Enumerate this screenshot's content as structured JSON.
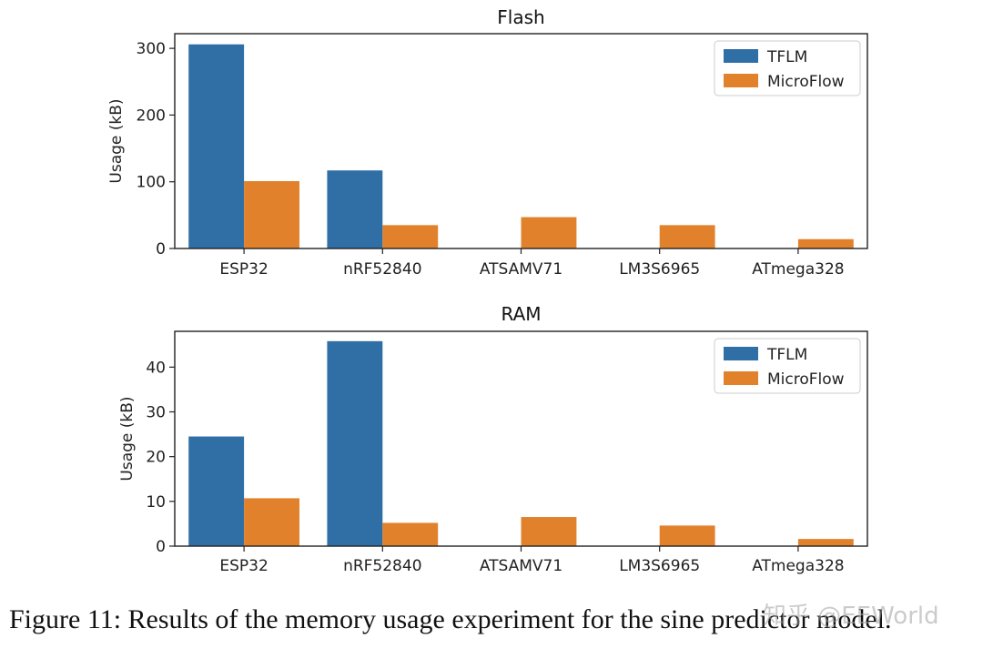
{
  "colors": {
    "tflm": "#2f6fa6",
    "microflow": "#e2812c",
    "axis": "#222222"
  },
  "chart_data": [
    {
      "type": "bar",
      "title": "Flash",
      "xlabel": "",
      "ylabel": "Usage (kB)",
      "categories": [
        "ESP32",
        "nRF52840",
        "ATSAMV71",
        "LM3S6965",
        "ATmega328"
      ],
      "series": [
        {
          "name": "TFLM",
          "values": [
            306,
            117,
            0,
            0,
            0
          ]
        },
        {
          "name": "MicroFlow",
          "values": [
            101,
            35,
            47,
            35,
            14
          ]
        }
      ],
      "ylim": [
        0,
        322
      ],
      "yticks": [
        0,
        100,
        200,
        300
      ],
      "legend": "top-right"
    },
    {
      "type": "bar",
      "title": "RAM",
      "xlabel": "",
      "ylabel": "Usage (kB)",
      "categories": [
        "ESP32",
        "nRF52840",
        "ATSAMV71",
        "LM3S6965",
        "ATmega328"
      ],
      "series": [
        {
          "name": "TFLM",
          "values": [
            24.5,
            45.8,
            0,
            0,
            0
          ]
        },
        {
          "name": "MicroFlow",
          "values": [
            10.7,
            5.2,
            6.5,
            4.6,
            1.6
          ]
        }
      ],
      "ylim": [
        0,
        48
      ],
      "yticks": [
        0,
        10,
        20,
        30,
        40
      ],
      "legend": "top-right"
    }
  ],
  "caption": "Figure 11: Results of the memory usage experiment for the sine predictor model.",
  "watermark": "知乎 @EEWorld"
}
